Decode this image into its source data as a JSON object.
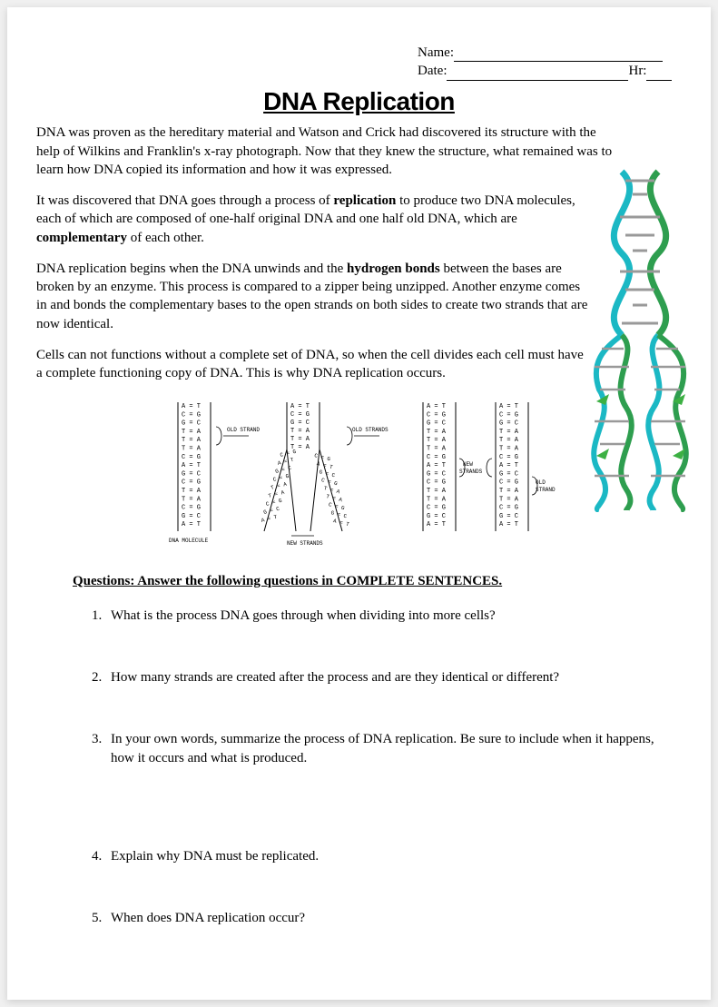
{
  "header": {
    "name_label": "Name:",
    "date_label": "Date:",
    "hr_label": "Hr:"
  },
  "title": "DNA Replication",
  "paragraphs": {
    "p1": "DNA was proven as the hereditary material and Watson and Crick had discovered its structure with the help of Wilkins and Franklin's x-ray photograph. Now that they knew the structure, what remained was to learn how DNA copied its information and how it was expressed.",
    "p2_a": "It was discovered that DNA goes through a process of ",
    "p2_b_bold": "replication",
    "p2_c": " to produce two DNA molecules, each of which are composed of one-half original DNA and one half old DNA, which are ",
    "p2_d_bold": "complementary",
    "p2_e": " of each other.",
    "p3_a": "DNA replication begins when the DNA unwinds and the ",
    "p3_b_bold": "hydrogen bonds",
    "p3_c": " between the bases are broken by an enzyme. This process is compared to a zipper being unzipped. Another enzyme comes in and bonds the complementary bases to the open strands on both sides to create two strands that are now identical.",
    "p4": "Cells can not functions without a complete set of DNA, so when the cell divides each cell must have a complete functioning copy of DNA. This is why DNA replication occurs."
  },
  "questions_heading": "Questions: Answer the following questions in COMPLETE SENTENCES.",
  "questions": [
    "What is the process DNA goes through when dividing into more cells?",
    "How many strands are created after the process and are they identical or different?",
    "In your own words, summarize the process of DNA replication. Be sure to include when it happens, how it occurs and what is produced.",
    "Explain why DNA must be replicated.",
    "When does DNA replication occur?"
  ],
  "diagram": {
    "strand_pairs": [
      "A = T",
      "C = G",
      "G = C",
      "T = A",
      "T = A",
      "T = A",
      "C = G",
      "A = T",
      "G = C",
      "C = G",
      "T = A",
      "T = A",
      "C = G",
      "G = C",
      "A = T"
    ],
    "right_pairs": [
      "A = T",
      "C = G",
      "G = C",
      "T = A",
      "T = A",
      "T = A",
      "C = G",
      "A = T",
      "G = C",
      "C = G",
      "T = A",
      "T = A",
      "C = G",
      "G = C",
      "A = T"
    ],
    "labels": {
      "old_strand": "OLD STRAND",
      "old_strands": "OLD STRANDS",
      "new_strands": "NEW STRANDS",
      "dna_molecule": "DNA MOLECULE"
    },
    "colors": {
      "line": "#000000",
      "text": "#000000"
    },
    "font_size": 7
  },
  "helix": {
    "colors": {
      "backbone1": "#1bb8c4",
      "backbone2": "#2e9e4f",
      "rung": "#888888",
      "base_a": "#e8e8e8",
      "base_c": "#d0d0d0",
      "base_g": "#c8c8c8",
      "base_t": "#e0e0e0",
      "arrow": "#3cb043"
    }
  }
}
